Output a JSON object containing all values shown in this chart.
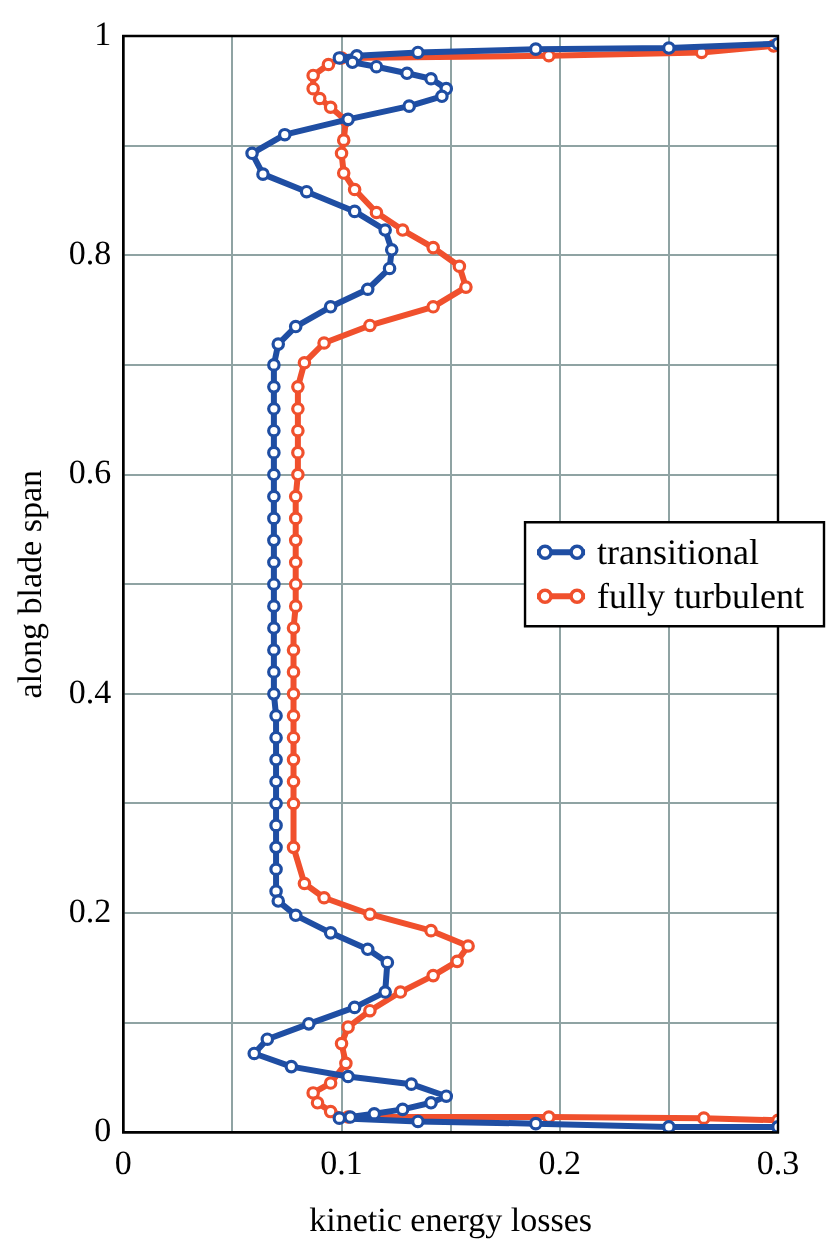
{
  "chart_data": {
    "type": "line",
    "xlabel": "kinetic energy losses",
    "ylabel": "along blade span",
    "xlim": [
      0,
      0.3
    ],
    "xticks": [
      0,
      {
        "value": 0.05,
        "label": null
      },
      0.1,
      {
        "value": 0.15,
        "label": null
      },
      0.2,
      {
        "value": 0.25,
        "label": null
      },
      0.3
    ],
    "ylim": [
      0,
      1
    ],
    "yticks": [
      0,
      {
        "value": 0.1,
        "label": null
      },
      0.2,
      {
        "value": 0.3,
        "label": null
      },
      0.4,
      {
        "value": 0.5,
        "label": null
      },
      0.6,
      {
        "value": 0.7,
        "label": null
      },
      0.8,
      {
        "value": 0.9,
        "label": null
      },
      1
    ],
    "grid": true,
    "legend": "right",
    "marker": "circle",
    "line_style": "solid",
    "series": [
      {
        "name": "transitional",
        "color": "#1f4ea3",
        "x": [
          0.3,
          0.25,
          0.189,
          0.135,
          0.107,
          0.099,
          0.105,
          0.116,
          0.13,
          0.141,
          0.148,
          0.146,
          0.131,
          0.103,
          0.074,
          0.059,
          0.064,
          0.084,
          0.106,
          0.12,
          0.123,
          0.122,
          0.112,
          0.095,
          0.079,
          0.071,
          0.069,
          0.069,
          0.069,
          0.069,
          0.069,
          0.069,
          0.069,
          0.069,
          0.069,
          0.069,
          0.069,
          0.069,
          0.069,
          0.069,
          0.069,
          0.069,
          0.07,
          0.07,
          0.07,
          0.07,
          0.07,
          0.07,
          0.07,
          0.07,
          0.07,
          0.071,
          0.079,
          0.095,
          0.112,
          0.121,
          0.12,
          0.106,
          0.085,
          0.066,
          0.06,
          0.077,
          0.103,
          0.132,
          0.148,
          0.141,
          0.128,
          0.115,
          0.104,
          0.099,
          0.135,
          0.189,
          0.25,
          0.3
        ],
        "values": [
          0.993,
          0.989,
          0.988,
          0.985,
          0.982,
          0.98,
          0.976,
          0.972,
          0.966,
          0.961,
          0.952,
          0.945,
          0.936,
          0.924,
          0.91,
          0.893,
          0.874,
          0.858,
          0.84,
          0.823,
          0.805,
          0.788,
          0.769,
          0.753,
          0.735,
          0.719,
          0.7,
          0.68,
          0.66,
          0.64,
          0.62,
          0.6,
          0.58,
          0.56,
          0.54,
          0.52,
          0.5,
          0.48,
          0.46,
          0.44,
          0.42,
          0.4,
          0.38,
          0.36,
          0.34,
          0.32,
          0.3,
          0.28,
          0.26,
          0.24,
          0.22,
          0.211,
          0.198,
          0.182,
          0.167,
          0.155,
          0.128,
          0.114,
          0.099,
          0.085,
          0.072,
          0.06,
          0.051,
          0.044,
          0.033,
          0.027,
          0.021,
          0.017,
          0.014,
          0.013,
          0.01,
          0.008,
          0.005,
          0.005
        ]
      },
      {
        "name": "fully turbulent",
        "color": "#f0502d",
        "x": [
          0.298,
          0.265,
          0.195,
          0.1,
          0.094,
          0.087,
          0.087,
          0.09,
          0.095,
          0.102,
          0.101,
          0.1,
          0.101,
          0.106,
          0.116,
          0.128,
          0.142,
          0.154,
          0.157,
          0.142,
          0.113,
          0.092,
          0.083,
          0.08,
          0.08,
          0.08,
          0.08,
          0.08,
          0.079,
          0.079,
          0.079,
          0.079,
          0.079,
          0.079,
          0.078,
          0.078,
          0.078,
          0.078,
          0.078,
          0.078,
          0.078,
          0.078,
          0.078,
          0.078,
          0.083,
          0.092,
          0.113,
          0.141,
          0.158,
          0.153,
          0.142,
          0.127,
          0.113,
          0.103,
          0.1,
          0.102,
          0.095,
          0.087,
          0.089,
          0.095,
          0.103,
          0.195,
          0.266,
          0.3
        ],
        "values": [
          0.991,
          0.985,
          0.982,
          0.98,
          0.974,
          0.964,
          0.952,
          0.943,
          0.935,
          0.923,
          0.905,
          0.893,
          0.875,
          0.86,
          0.839,
          0.823,
          0.807,
          0.79,
          0.771,
          0.753,
          0.736,
          0.72,
          0.702,
          0.68,
          0.66,
          0.64,
          0.62,
          0.6,
          0.58,
          0.56,
          0.54,
          0.52,
          0.5,
          0.48,
          0.46,
          0.44,
          0.42,
          0.4,
          0.38,
          0.36,
          0.34,
          0.32,
          0.3,
          0.26,
          0.227,
          0.214,
          0.199,
          0.184,
          0.17,
          0.156,
          0.143,
          0.128,
          0.111,
          0.096,
          0.081,
          0.063,
          0.045,
          0.036,
          0.027,
          0.019,
          0.014,
          0.014,
          0.013,
          0.011
        ]
      }
    ]
  }
}
